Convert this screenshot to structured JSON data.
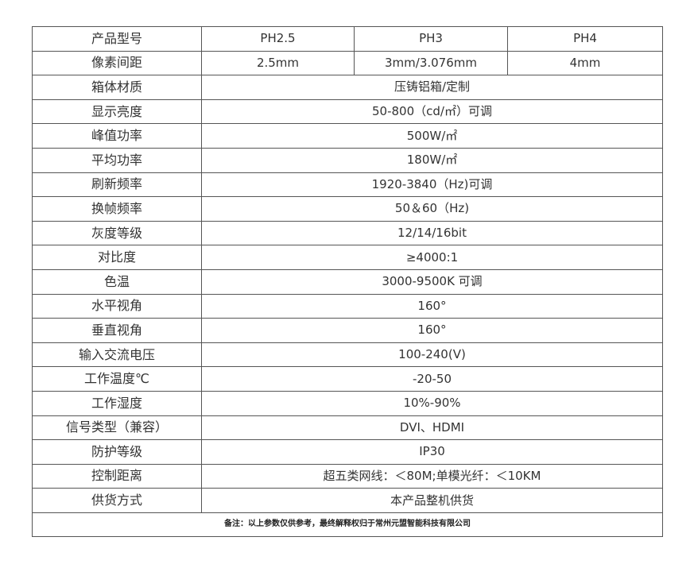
{
  "header": {
    "label": "产品型号",
    "models": [
      "PH2.5",
      "PH3",
      "PH4"
    ]
  },
  "pitch": {
    "label": "像素间距",
    "values": [
      "2.5mm",
      "3mm/3.076mm",
      "4mm"
    ]
  },
  "rows": [
    {
      "label": "箱体材质",
      "value": "压铸铝箱/定制"
    },
    {
      "label": "显示亮度",
      "value": "50-800（cd/㎡）可调"
    },
    {
      "label": "峰值功率",
      "value": "500W/㎡"
    },
    {
      "label": "平均功率",
      "value": "180W/㎡"
    },
    {
      "label": "刷新频率",
      "value": "1920-3840（Hz)可调"
    },
    {
      "label": "换帧频率",
      "value": "50＆60（Hz)"
    },
    {
      "label": "灰度等级",
      "value": "12/14/16bit"
    },
    {
      "label": "对比度",
      "value": "≥4000:1"
    },
    {
      "label": "色温",
      "value": "3000-9500K 可调"
    },
    {
      "label": "水平视角",
      "value": "160°"
    },
    {
      "label": "垂直视角",
      "value": "160°"
    },
    {
      "label": "输入交流电压",
      "value": "100-240(V)"
    },
    {
      "label": "工作温度℃",
      "value": "-20-50"
    },
    {
      "label": "工作湿度",
      "value": "10%-90%"
    },
    {
      "label": "信号类型（兼容）",
      "value": "DVI、HDMI"
    },
    {
      "label": "防护等级",
      "value": "IP30"
    },
    {
      "label": "控制距离",
      "value": "超五类网线：＜80M;单模光纤：＜10KM"
    },
    {
      "label": "供货方式",
      "value": "本产品整机供货"
    }
  ],
  "note": "备注：以上参数仅供参考，最终解释权归于常州元盟智能科技有限公司"
}
